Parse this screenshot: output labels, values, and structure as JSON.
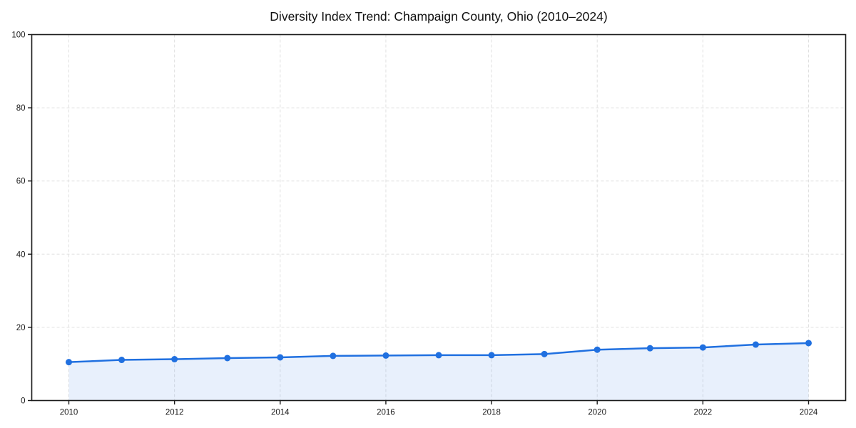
{
  "chart_data": {
    "type": "line",
    "title": "Diversity Index Trend: Champaign County, Ohio (2010–2024)",
    "x": [
      2010,
      2011,
      2012,
      2013,
      2014,
      2015,
      2016,
      2017,
      2018,
      2019,
      2020,
      2021,
      2022,
      2023,
      2024
    ],
    "values": [
      10.5,
      11.1,
      11.3,
      11.6,
      11.8,
      12.2,
      12.3,
      12.4,
      12.4,
      12.7,
      13.9,
      14.3,
      14.5,
      15.3,
      15.7
    ],
    "xlabel": "",
    "ylabel": "",
    "ylim": [
      0,
      100
    ],
    "xticks": [
      2010,
      2012,
      2014,
      2016,
      2018,
      2020,
      2022,
      2024
    ],
    "yticks": [
      0,
      20,
      40,
      60,
      80,
      100
    ],
    "grid": "dashed",
    "legend_position": "none",
    "line_color": "#2070e0",
    "marker": "circle",
    "area_fill_color": "rgba(32, 112, 224, 0.10)",
    "grid_color": "#e0e0e0",
    "spine_color": "#1a1a1a",
    "background_color": "#ffffff"
  }
}
